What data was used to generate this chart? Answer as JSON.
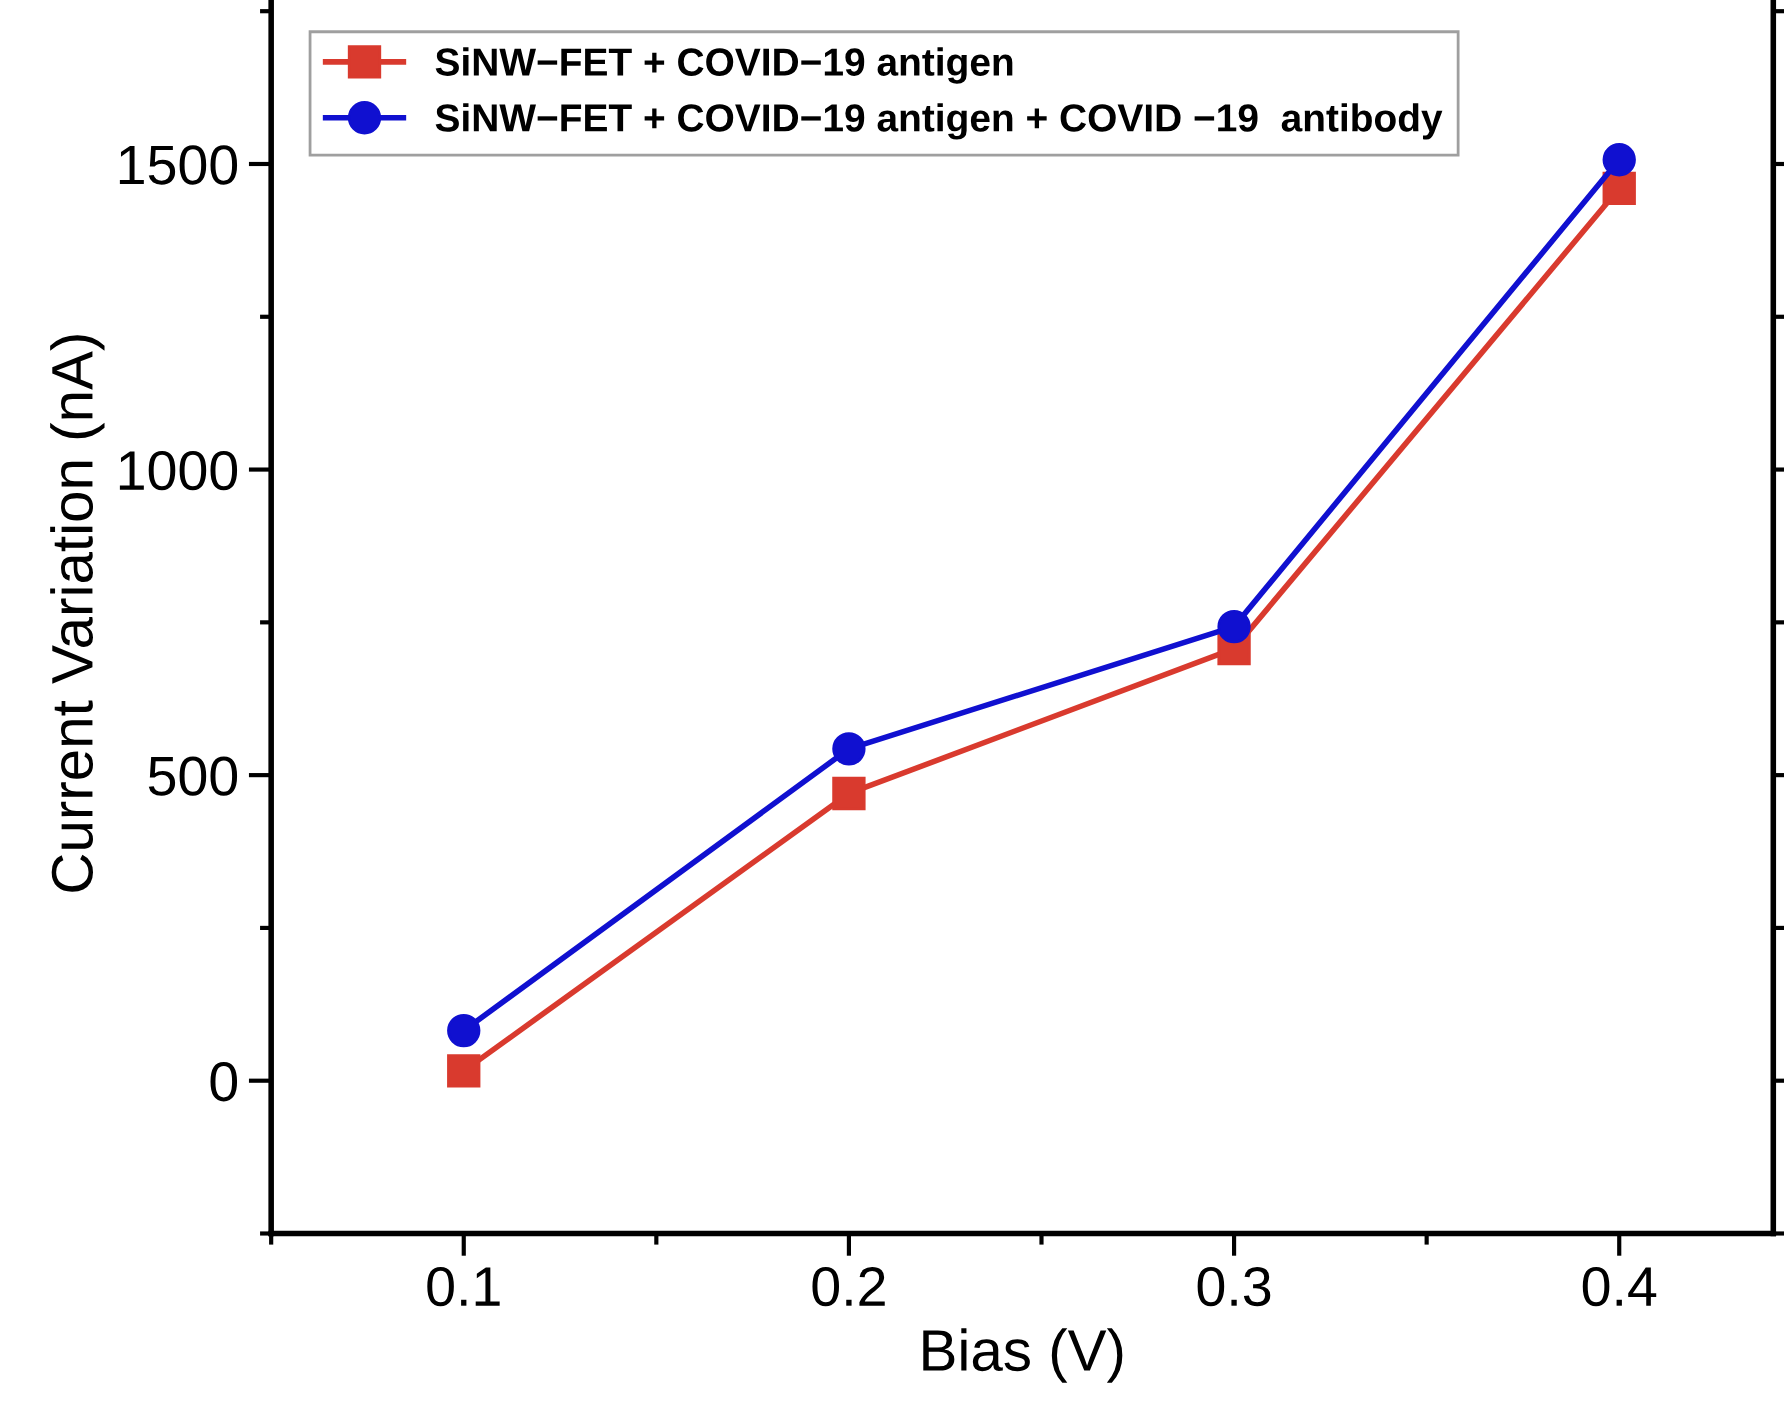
{
  "chart_data": {
    "type": "line",
    "xlabel": "Bias (V)",
    "ylabel": "Current Variation (nA)",
    "x": [
      0.1,
      0.2,
      0.3,
      0.4
    ],
    "series": [
      {
        "name": "SiNW−FET + COVID−19 antigen",
        "color": "#d93a2e",
        "marker": "square",
        "values": [
          16,
          470,
          707,
          1460
        ]
      },
      {
        "name": "SiNW−FET + COVID−19 antigen + COVID −19  antibody",
        "color": "#1010d0",
        "marker": "circle",
        "values": [
          82,
          543,
          743,
          1507
        ]
      }
    ],
    "xlim": [
      0.05,
      0.44
    ],
    "xticks": [
      0.1,
      0.2,
      0.3,
      0.4
    ],
    "ylim": [
      -250,
      1780
    ],
    "yticks": [
      0,
      500,
      1000,
      1500
    ],
    "grid": false,
    "legend": "top left",
    "line_style": "solid"
  }
}
